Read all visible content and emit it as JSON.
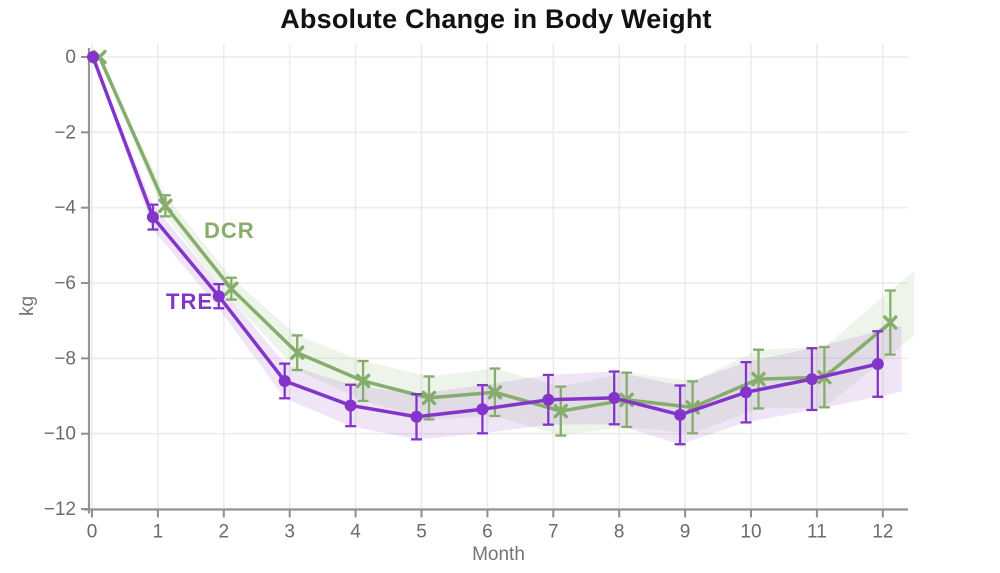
{
  "title": "Absolute Change in Body Weight",
  "chart_data": {
    "type": "line",
    "title": "Absolute Change in Body Weight",
    "xlabel": "Month",
    "ylabel": "kg",
    "x": [
      0,
      1,
      2,
      3,
      4,
      5,
      6,
      7,
      8,
      9,
      10,
      11,
      12
    ],
    "xticks": [
      0,
      1,
      2,
      3,
      4,
      5,
      6,
      7,
      8,
      9,
      10,
      11,
      12
    ],
    "yticks": [
      0,
      -2,
      -4,
      -6,
      -8,
      -10,
      -12
    ],
    "xlim": [
      0,
      12.4
    ],
    "ylim": [
      -12,
      0
    ],
    "grid": true,
    "legend_position": "inline-labels",
    "series": [
      {
        "name": "DCR",
        "marker": "x",
        "color": "#86ad6c",
        "band_color": "#8fbc74",
        "values": [
          0,
          -3.95,
          -6.15,
          -7.85,
          -8.6,
          -9.05,
          -8.9,
          -9.4,
          -9.1,
          -9.3,
          -8.55,
          -8.5,
          -7.05
        ],
        "error": [
          0,
          0.28,
          0.29,
          0.46,
          0.53,
          0.57,
          0.63,
          0.65,
          0.72,
          0.69,
          0.78,
          0.8,
          0.85
        ]
      },
      {
        "name": "TRE",
        "marker": "circle",
        "color": "#8435c9",
        "band_color": "#9a5cd0",
        "values": [
          0,
          -4.25,
          -6.35,
          -8.6,
          -9.25,
          -9.55,
          -9.35,
          -9.1,
          -9.05,
          -9.5,
          -8.9,
          -8.55,
          -8.15
        ],
        "error": [
          0,
          0.33,
          0.32,
          0.46,
          0.55,
          0.6,
          0.64,
          0.66,
          0.7,
          0.78,
          0.8,
          0.82,
          0.87
        ]
      }
    ]
  }
}
